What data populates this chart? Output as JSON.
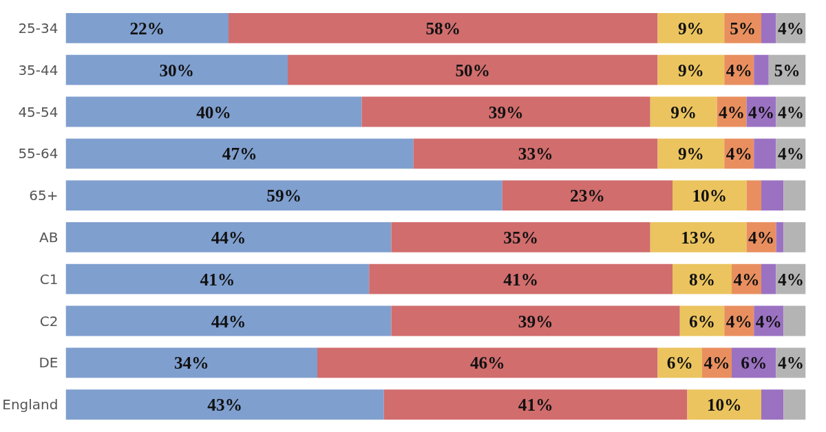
{
  "chart_data": {
    "type": "bar",
    "orientation": "horizontal",
    "stacked": true,
    "categories": [
      "25-34",
      "35-44",
      "45-54",
      "55-64",
      "65+",
      "AB",
      "C1",
      "C2",
      "DE",
      "England"
    ],
    "xlim": [
      0,
      100
    ],
    "tick_labels": "y",
    "grid": false,
    "series": [
      {
        "color": "#7f9fcf",
        "values": [
          22,
          30,
          40,
          47,
          59,
          44,
          41,
          44,
          34,
          43
        ],
        "value_labels": [
          "22%",
          "30%",
          "40%",
          "47%",
          "59%",
          "44%",
          "41%",
          "44%",
          "34%",
          "43%"
        ]
      },
      {
        "color": "#d16d6d",
        "values": [
          58,
          50,
          39,
          33,
          23,
          35,
          41,
          39,
          46,
          41
        ],
        "value_labels": [
          "58%",
          "50%",
          "39%",
          "33%",
          "23%",
          "35%",
          "41%",
          "39%",
          "46%",
          "41%"
        ]
      },
      {
        "color": "#ebc45f",
        "values": [
          9,
          9,
          9,
          9,
          10,
          13,
          8,
          6,
          6,
          10
        ],
        "value_labels": [
          "9%",
          "9%",
          "9%",
          "9%",
          "10%",
          "13%",
          "8%",
          "6%",
          "6%",
          "10%"
        ]
      },
      {
        "color": "#e98f5f",
        "values": [
          5,
          4,
          4,
          4,
          2,
          4,
          4,
          4,
          4,
          0
        ],
        "value_labels": [
          "5%",
          "4%",
          "4%",
          "4%",
          null,
          "4%",
          "4%",
          "4%",
          "4%",
          null
        ]
      },
      {
        "color": "#9b72c2",
        "values": [
          2,
          2,
          4,
          3,
          3,
          1,
          2,
          4,
          6,
          3
        ],
        "value_labels": [
          null,
          null,
          "4%",
          null,
          null,
          null,
          null,
          "4%",
          "6%",
          null
        ]
      },
      {
        "color": "#b4b4b4",
        "values": [
          4,
          5,
          4,
          4,
          3,
          3,
          4,
          3,
          4,
          3
        ],
        "value_labels": [
          "4%",
          "5%",
          "4%",
          "4%",
          null,
          null,
          "4%",
          null,
          "4%",
          null
        ]
      }
    ]
  }
}
